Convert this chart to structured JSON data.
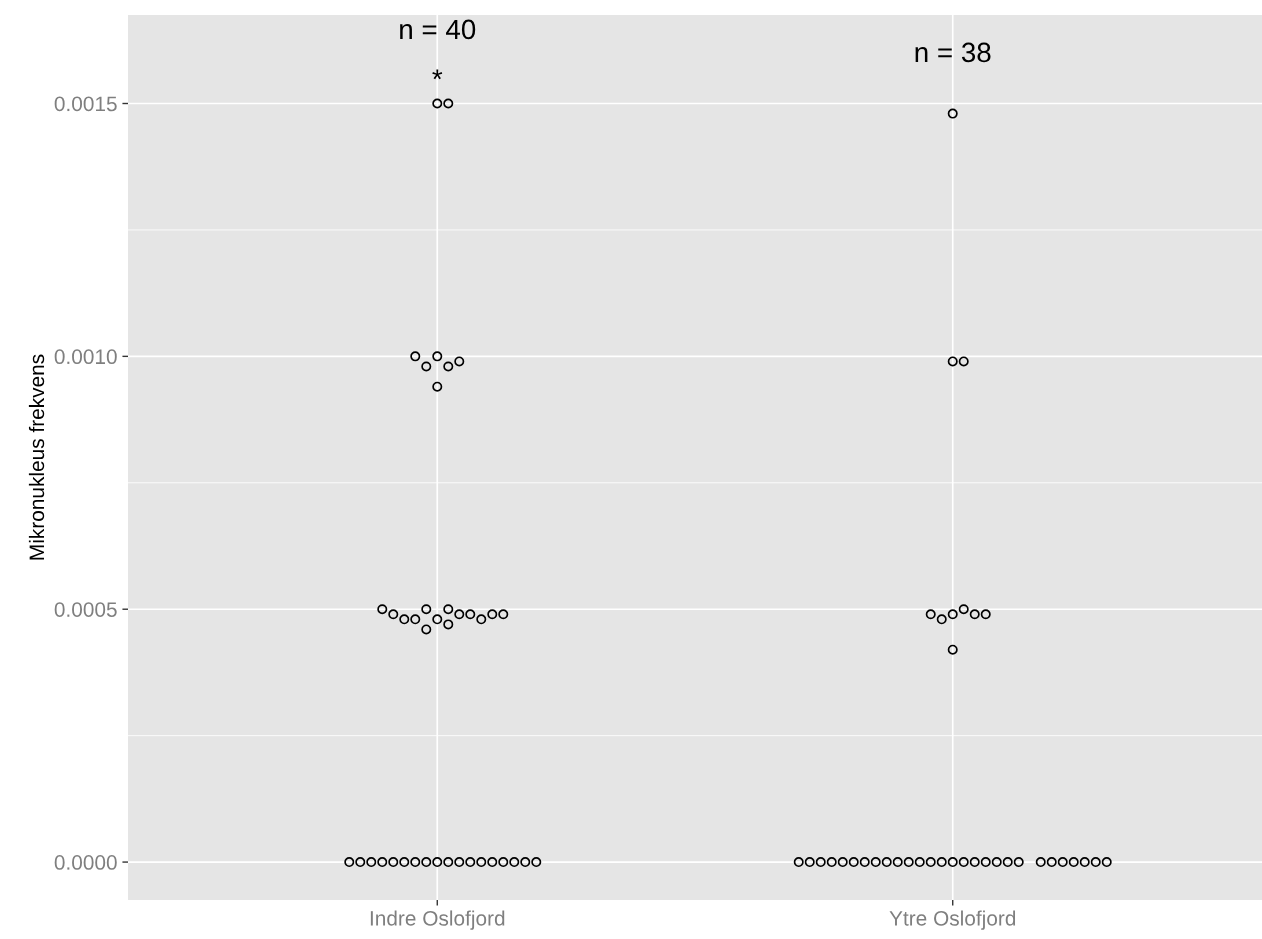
{
  "chart_data": {
    "type": "scatter",
    "ylabel": "Mikronukleus frekvens",
    "marker": "circle",
    "grid": true,
    "categories": [
      "Indre Oslofjord",
      "Ytre Oslofjord"
    ],
    "ylim": [
      -7.5e-05,
      0.001675
    ],
    "yticks": [
      {
        "value": 0,
        "label": "0.0000"
      },
      {
        "value": 0.0005,
        "label": "0.0005"
      },
      {
        "value": 0.001,
        "label": "0.0010"
      },
      {
        "value": 0.0015,
        "label": "0.0015"
      }
    ],
    "series": [
      {
        "color": "#000000",
        "x": [
          "Indre Oslofjord",
          "Indre Oslofjord",
          "Indre Oslofjord",
          "Indre Oslofjord",
          "Indre Oslofjord",
          "Indre Oslofjord",
          "Indre Oslofjord",
          "Indre Oslofjord",
          "Indre Oslofjord",
          "Indre Oslofjord",
          "Indre Oslofjord",
          "Indre Oslofjord",
          "Indre Oslofjord",
          "Indre Oslofjord",
          "Indre Oslofjord",
          "Indre Oslofjord",
          "Indre Oslofjord",
          "Indre Oslofjord",
          "Indre Oslofjord",
          "Indre Oslofjord",
          "Indre Oslofjord",
          "Indre Oslofjord",
          "Indre Oslofjord",
          "Indre Oslofjord",
          "Indre Oslofjord",
          "Indre Oslofjord",
          "Indre Oslofjord",
          "Indre Oslofjord",
          "Indre Oslofjord",
          "Indre Oslofjord",
          "Indre Oslofjord",
          "Indre Oslofjord",
          "Indre Oslofjord",
          "Indre Oslofjord",
          "Indre Oslofjord",
          "Indre Oslofjord",
          "Indre Oslofjord",
          "Indre Oslofjord",
          "Indre Oslofjord",
          "Indre Oslofjord"
        ],
        "values": [
          0.0015,
          0.0015,
          0.001,
          0.00098,
          0.00098,
          0.00099,
          0.001,
          0.00094,
          0.00048,
          0.0005,
          0.0005,
          0.00047,
          0.00049,
          0.00048,
          0.00049,
          0.00048,
          0.00046,
          0.00048,
          0.00049,
          0.00049,
          0.0005,
          0.00049,
          0,
          0,
          0,
          0,
          0,
          0,
          0,
          0,
          0,
          0,
          0,
          0,
          0,
          0,
          0,
          0,
          0,
          0
        ]
      },
      {
        "color": "#000000",
        "x": [
          "Ytre Oslofjord",
          "Ytre Oslofjord",
          "Ytre Oslofjord",
          "Ytre Oslofjord",
          "Ytre Oslofjord",
          "Ytre Oslofjord",
          "Ytre Oslofjord",
          "Ytre Oslofjord",
          "Ytre Oslofjord",
          "Ytre Oslofjord",
          "Ytre Oslofjord",
          "Ytre Oslofjord",
          "Ytre Oslofjord",
          "Ytre Oslofjord",
          "Ytre Oslofjord",
          "Ytre Oslofjord",
          "Ytre Oslofjord",
          "Ytre Oslofjord",
          "Ytre Oslofjord",
          "Ytre Oslofjord",
          "Ytre Oslofjord",
          "Ytre Oslofjord",
          "Ytre Oslofjord",
          "Ytre Oslofjord",
          "Ytre Oslofjord",
          "Ytre Oslofjord",
          "Ytre Oslofjord",
          "Ytre Oslofjord",
          "Ytre Oslofjord",
          "Ytre Oslofjord",
          "Ytre Oslofjord",
          "Ytre Oslofjord",
          "Ytre Oslofjord",
          "Ytre Oslofjord",
          "Ytre Oslofjord",
          "Ytre Oslofjord",
          "Ytre Oslofjord",
          "Ytre Oslofjord"
        ],
        "values": [
          0.00148,
          0.00099,
          0.00099,
          0.00049,
          0.0005,
          0.00048,
          0.00049,
          0.00049,
          0.00049,
          0.00042,
          0,
          0,
          0,
          0,
          0,
          0,
          0,
          0,
          0,
          0,
          0,
          0,
          0,
          0,
          0,
          0,
          0,
          0,
          0,
          0,
          0,
          0,
          0,
          0,
          0,
          0,
          0,
          0
        ]
      }
    ],
    "annotations": [
      "n = 40",
      "*",
      "n = 38"
    ]
  }
}
